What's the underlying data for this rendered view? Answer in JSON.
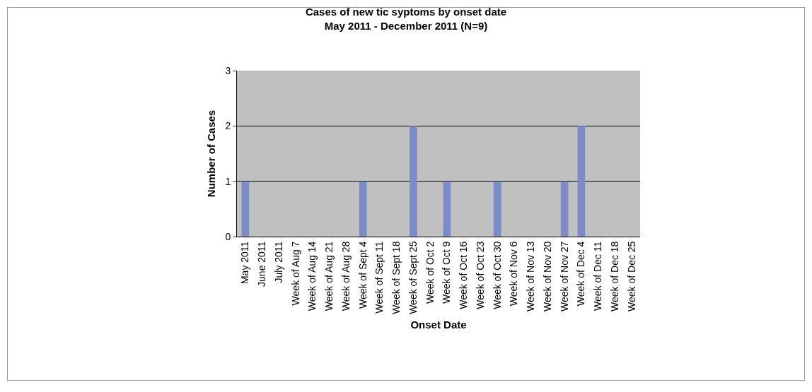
{
  "chart_data": {
    "type": "bar",
    "title": "Cases of new tic syptoms by onset date",
    "subtitle": "May 2011 - December 2011 (N=9)",
    "xlabel": "Onset Date",
    "ylabel": "Number of Cases",
    "categories": [
      "May 2011",
      "June 2011",
      "July 2011",
      "Week of Aug 7",
      "Week of Aug 14",
      "Week of Aug 21",
      "Week of Aug 28",
      "Week of Sept 4",
      "Week of Sept 11",
      "Week of Sept 18",
      "Week of Sept 25",
      "Week of Oct 2",
      "Week of Oct 9",
      "Week of Oct 16",
      "Week of Oct 23",
      "Week of Oct 30",
      "Week of Nov 6",
      "Week of Nov 13",
      "Week of Nov 20",
      "Week of Nov 27",
      "Week of Dec 4",
      "Week of Dec 11",
      "Week of Dec 18",
      "Week of Dec 25"
    ],
    "values": [
      1,
      0,
      0,
      0,
      0,
      0,
      0,
      1,
      0,
      0,
      2,
      0,
      1,
      0,
      0,
      1,
      0,
      0,
      0,
      1,
      2,
      0,
      0,
      0
    ],
    "color": "#7b8cc8",
    "ylim": [
      0,
      3
    ],
    "yticks": [
      0,
      1,
      2,
      3
    ],
    "grid": "y",
    "legend": false
  }
}
